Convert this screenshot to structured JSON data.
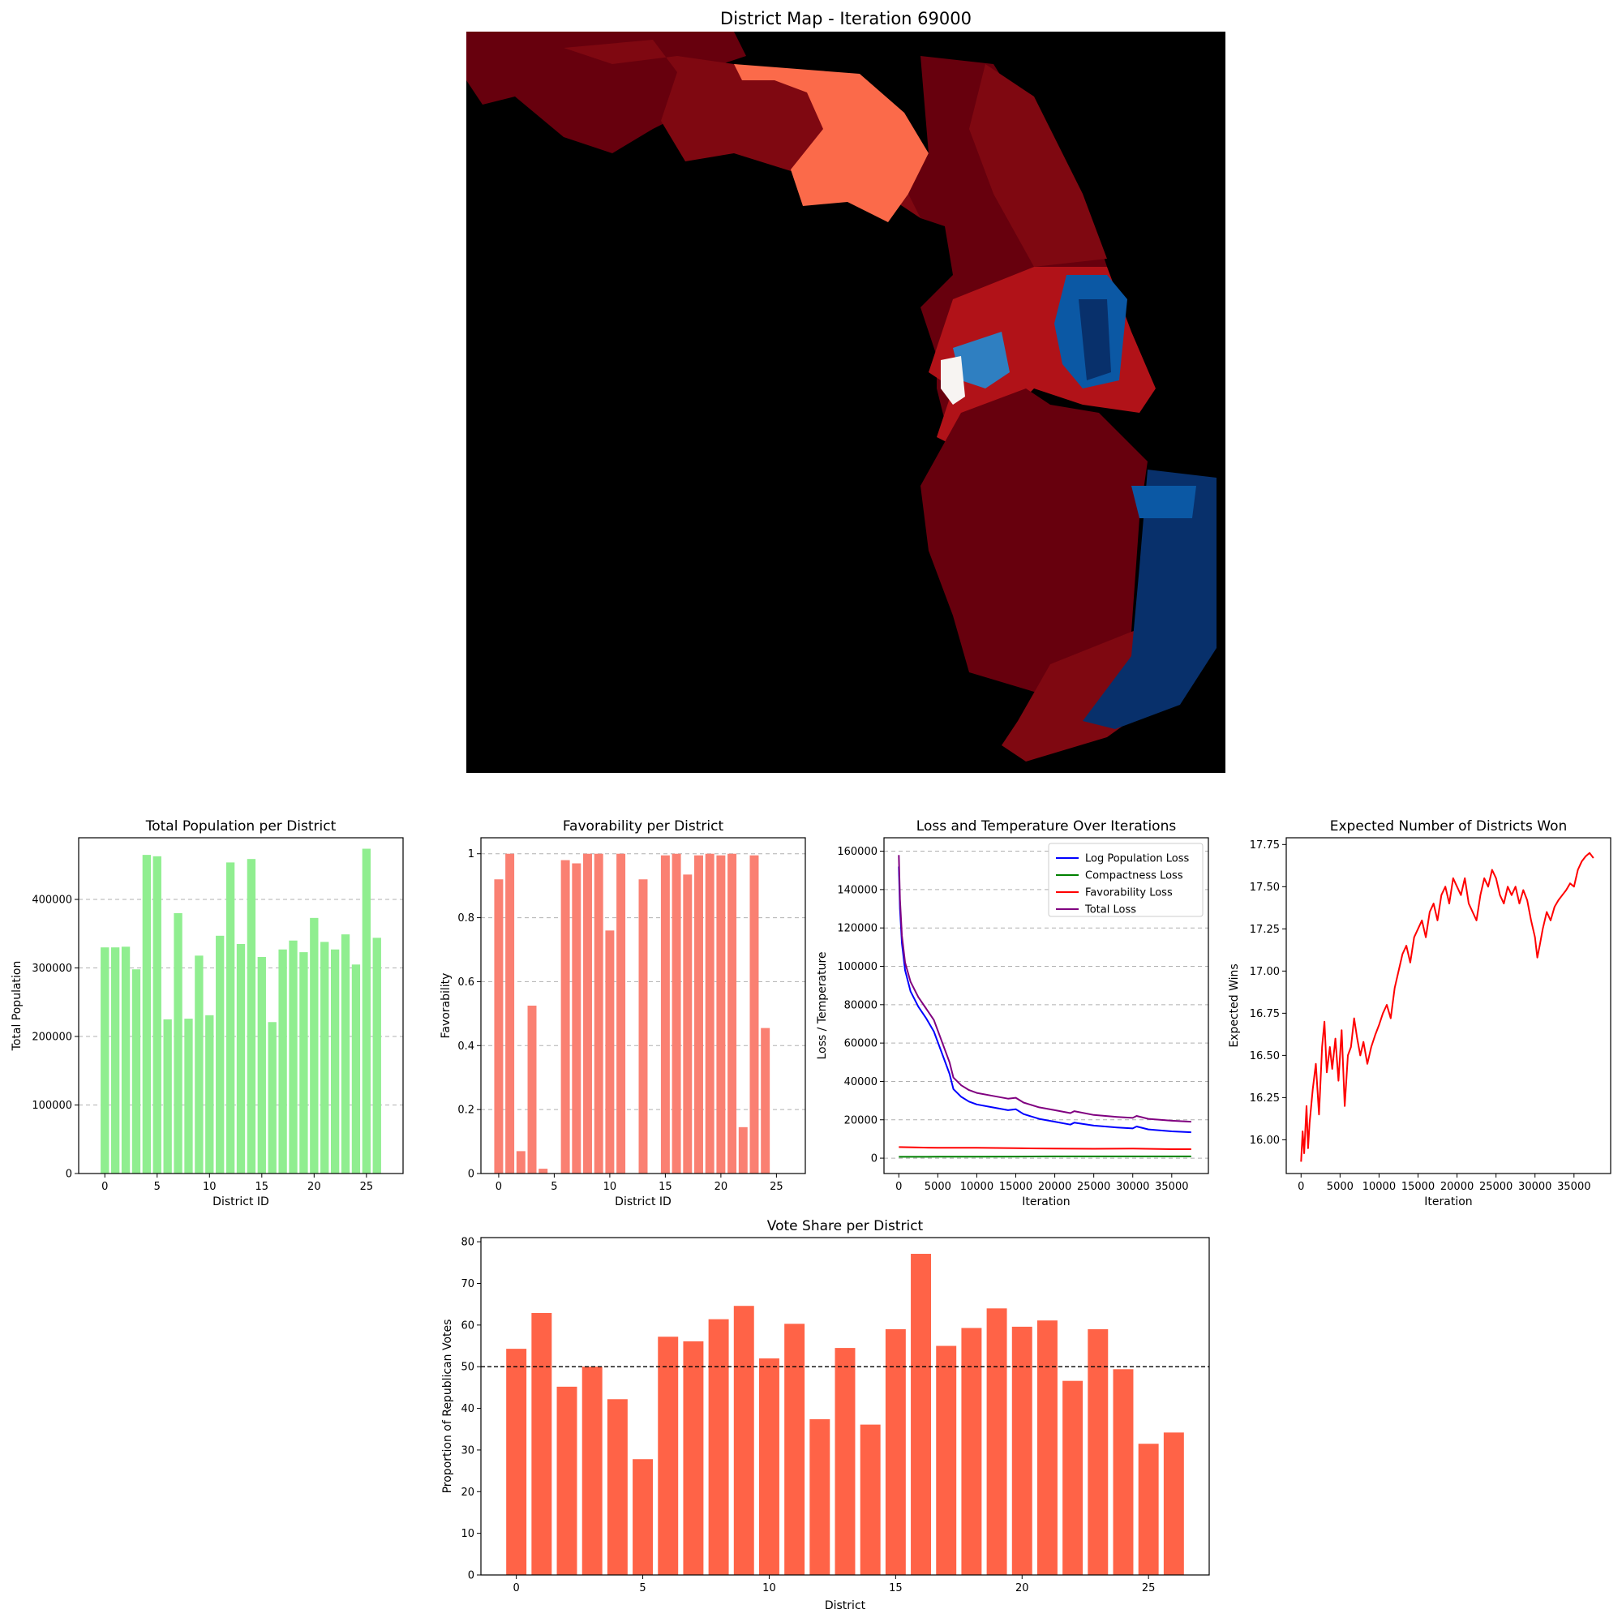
{
  "map": {
    "title": "District Map - Iteration 69000",
    "colors": {
      "background": "#000000",
      "dark_red": "#67000d",
      "deep_red": "#7f0811",
      "mid_red": "#b11218",
      "salmon": "#fb6a4a",
      "light": "#f7f4f2",
      "mid_blue": "#2f7fc1",
      "blue": "#0b58a4",
      "navy": "#08306b"
    }
  },
  "chart_data": [
    {
      "id": "population",
      "type": "bar",
      "title": "Total Population per District",
      "xlabel": "District ID",
      "ylabel": "Total Population",
      "categories": [
        0,
        1,
        2,
        3,
        4,
        5,
        6,
        7,
        8,
        9,
        10,
        11,
        12,
        13,
        14,
        15,
        16,
        17,
        18,
        19,
        20,
        21,
        22,
        23,
        24,
        25,
        26
      ],
      "values": [
        330000,
        330000,
        331000,
        298000,
        465000,
        463000,
        225000,
        380000,
        226000,
        318000,
        231000,
        347000,
        454000,
        335000,
        459000,
        316000,
        221000,
        327000,
        340000,
        323000,
        373000,
        338000,
        327000,
        349000,
        305000,
        474000,
        344000
      ],
      "xlim": [
        -2.5,
        28.5
      ],
      "ylim": [
        0,
        490000
      ],
      "xticks": [
        0,
        5,
        10,
        15,
        20,
        25
      ],
      "yticks": [
        0,
        100000,
        200000,
        300000,
        400000
      ],
      "grid": "y",
      "color": "#90ee90"
    },
    {
      "id": "favorability",
      "type": "bar",
      "title": "Favorability per District",
      "xlabel": "District ID",
      "ylabel": "Favorability",
      "categories": [
        0,
        1,
        2,
        3,
        4,
        5,
        6,
        7,
        8,
        9,
        10,
        11,
        12,
        13,
        14,
        15,
        16,
        17,
        18,
        19,
        20,
        21,
        22,
        23,
        24,
        25,
        26
      ],
      "values": [
        0.92,
        1.0,
        0.07,
        0.525,
        0.015,
        0.0,
        0.98,
        0.97,
        1.0,
        1.0,
        0.76,
        1.0,
        0.0,
        0.92,
        0.0,
        0.995,
        1.0,
        0.935,
        0.995,
        1.0,
        0.995,
        1.0,
        0.145,
        0.995,
        0.455,
        0.0,
        0.0
      ],
      "xlim": [
        -1.6,
        27.6
      ],
      "ylim": [
        0,
        1.05
      ],
      "xticks": [
        0,
        5,
        10,
        15,
        20,
        25
      ],
      "yticks": [
        0.0,
        0.2,
        0.4,
        0.6,
        0.8,
        1.0
      ],
      "grid": "y",
      "color": "#fa8072"
    },
    {
      "id": "loss",
      "type": "line",
      "title": "Loss and Temperature Over Iterations",
      "xlabel": "Iteration",
      "ylabel": "Loss / Temperature",
      "xlim": [
        -1900,
        39700
      ],
      "ylim": [
        -8000,
        167000
      ],
      "xticks": [
        0,
        5000,
        10000,
        15000,
        20000,
        25000,
        30000,
        35000
      ],
      "yticks": [
        0,
        20000,
        40000,
        60000,
        80000,
        100000,
        120000,
        140000,
        160000
      ],
      "grid": "y",
      "legend": "top-right",
      "series": [
        {
          "name": "Log Population Loss",
          "color": "#0000ff",
          "x": [
            0,
            150,
            400,
            800,
            1500,
            2500,
            3500,
            4500,
            5500,
            6500,
            7000,
            8000,
            9000,
            10000,
            12000,
            14000,
            15000,
            16000,
            18000,
            20000,
            22000,
            22500,
            25000,
            28000,
            30000,
            30500,
            32000,
            35000,
            37500
          ],
          "y": [
            152000,
            130000,
            112000,
            98000,
            87000,
            79000,
            73000,
            66000,
            55000,
            44000,
            36000,
            32000,
            29500,
            28000,
            26500,
            25000,
            25500,
            23000,
            20500,
            19000,
            17500,
            18500,
            17000,
            16000,
            15500,
            16500,
            15000,
            14000,
            13500
          ]
        },
        {
          "name": "Compactness Loss",
          "color": "#008000",
          "x": [
            0,
            5000,
            10000,
            15000,
            20000,
            25000,
            30000,
            35000,
            37500
          ],
          "y": [
            700,
            750,
            800,
            850,
            900,
            900,
            900,
            900,
            900
          ]
        },
        {
          "name": "Favorability Loss",
          "color": "#ff0000",
          "x": [
            0,
            2000,
            5000,
            10000,
            15000,
            20000,
            25000,
            30000,
            35000,
            37500
          ],
          "y": [
            5800,
            5600,
            5400,
            5400,
            5200,
            5000,
            4900,
            5000,
            4700,
            4700
          ]
        },
        {
          "name": "Total Loss",
          "color": "#800080",
          "x": [
            0,
            150,
            400,
            800,
            1500,
            2500,
            3500,
            4500,
            5500,
            6500,
            7000,
            8000,
            9000,
            10000,
            12000,
            14000,
            15000,
            16000,
            18000,
            20000,
            22000,
            22500,
            25000,
            28000,
            30000,
            30500,
            32000,
            35000,
            37500
          ],
          "y": [
            158000,
            135000,
            116000,
            102000,
            92000,
            84000,
            78000,
            72000,
            61000,
            50000,
            42000,
            38000,
            35500,
            34000,
            32500,
            31000,
            31500,
            29000,
            26500,
            25000,
            23500,
            24500,
            22500,
            21500,
            21000,
            22000,
            20500,
            19500,
            19000
          ]
        }
      ]
    },
    {
      "id": "expected_wins",
      "type": "line",
      "title": "Expected Number of Districts Won",
      "xlabel": "Iteration",
      "ylabel": "Expected Wins",
      "xlim": [
        -1900,
        39700
      ],
      "ylim": [
        15.8,
        17.79
      ],
      "xticks": [
        0,
        5000,
        10000,
        15000,
        20000,
        25000,
        30000,
        35000
      ],
      "yticks": [
        16.0,
        16.25,
        16.5,
        16.75,
        17.0,
        17.25,
        17.5,
        17.75
      ],
      "ytick_labels": [
        "16.00",
        "16.25",
        "16.50",
        "16.75",
        "17.00",
        "17.25",
        "17.50",
        "17.75"
      ],
      "grid": "off",
      "series": [
        {
          "name": "",
          "color": "#ff0000",
          "x": [
            0,
            200,
            400,
            700,
            900,
            1100,
            1500,
            1900,
            2300,
            2700,
            3000,
            3300,
            3700,
            4000,
            4400,
            4800,
            5200,
            5600,
            6000,
            6400,
            6800,
            7200,
            7600,
            8000,
            8500,
            9000,
            9500,
            10000,
            10500,
            11000,
            11500,
            12000,
            12500,
            13000,
            13500,
            14000,
            14500,
            15000,
            15500,
            16000,
            16500,
            17000,
            17500,
            18000,
            18500,
            19000,
            19500,
            20000,
            20500,
            21000,
            21500,
            22000,
            22500,
            23000,
            23500,
            24000,
            24500,
            25000,
            25500,
            26000,
            26500,
            27000,
            27500,
            28000,
            28500,
            29000,
            29500,
            30000,
            30300,
            30600,
            31000,
            31500,
            32000,
            32500,
            33000,
            33500,
            34000,
            34500,
            35000,
            35500,
            36000,
            36500,
            37000,
            37500
          ],
          "y": [
            15.87,
            16.05,
            15.92,
            16.2,
            15.95,
            16.1,
            16.3,
            16.45,
            16.15,
            16.55,
            16.7,
            16.4,
            16.55,
            16.42,
            16.6,
            16.35,
            16.65,
            16.2,
            16.5,
            16.55,
            16.72,
            16.6,
            16.5,
            16.58,
            16.45,
            16.55,
            16.62,
            16.68,
            16.75,
            16.8,
            16.72,
            16.9,
            17.0,
            17.1,
            17.15,
            17.05,
            17.2,
            17.25,
            17.3,
            17.2,
            17.35,
            17.4,
            17.3,
            17.45,
            17.5,
            17.4,
            17.55,
            17.5,
            17.45,
            17.55,
            17.4,
            17.35,
            17.3,
            17.45,
            17.55,
            17.5,
            17.6,
            17.55,
            17.45,
            17.4,
            17.5,
            17.45,
            17.5,
            17.4,
            17.48,
            17.42,
            17.3,
            17.2,
            17.08,
            17.15,
            17.25,
            17.35,
            17.3,
            17.38,
            17.42,
            17.45,
            17.48,
            17.52,
            17.5,
            17.6,
            17.65,
            17.68,
            17.7,
            17.67
          ]
        }
      ]
    },
    {
      "id": "vote_share",
      "type": "bar",
      "title": "Vote Share per District",
      "xlabel": "District",
      "ylabel": "Proportion of Republican Votes",
      "categories": [
        0,
        1,
        2,
        3,
        4,
        5,
        6,
        7,
        8,
        9,
        10,
        11,
        12,
        13,
        14,
        15,
        16,
        17,
        18,
        19,
        20,
        21,
        22,
        23,
        24,
        25,
        26
      ],
      "values": [
        54.3,
        62.9,
        45.2,
        50.0,
        42.2,
        27.8,
        57.2,
        56.1,
        61.4,
        64.6,
        52.0,
        60.3,
        37.4,
        54.5,
        36.1,
        59.0,
        77.1,
        55.0,
        59.3,
        64.0,
        59.6,
        61.1,
        46.6,
        59.0,
        49.4,
        31.5,
        34.2
      ],
      "xlim": [
        -1.4,
        27.4
      ],
      "ylim": [
        0,
        81
      ],
      "xticks": [
        0,
        5,
        10,
        15,
        20,
        25
      ],
      "yticks": [
        0,
        10,
        20,
        30,
        40,
        50,
        60,
        70,
        80
      ],
      "grid": "off",
      "reference_line": 50,
      "color": "#ff6347"
    }
  ]
}
